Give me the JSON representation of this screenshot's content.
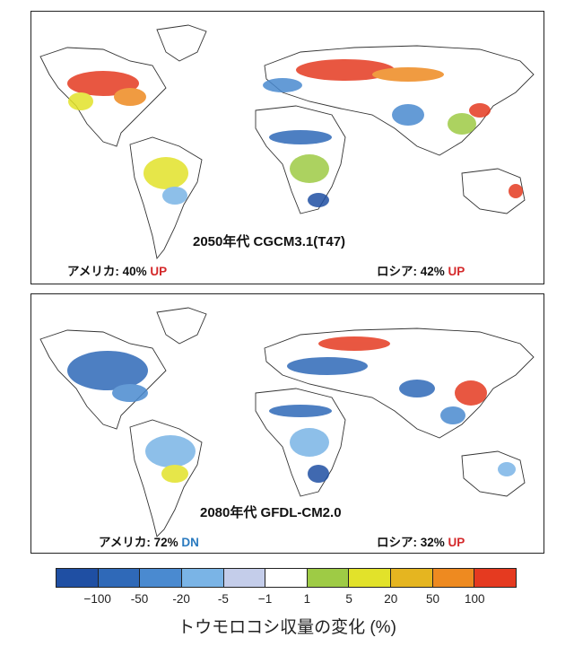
{
  "panels": [
    {
      "title": "2050年代  CGCM3.1(T47)",
      "usa": {
        "label": "アメリカ: 40% ",
        "change": "UP",
        "percent": 40
      },
      "russia": {
        "label": "ロシア: 42% ",
        "change": "UP",
        "percent": 42
      }
    },
    {
      "title": "2080年代  GFDL-CM2.0",
      "usa": {
        "label": "アメリカ: 72% ",
        "change": "DN",
        "percent": 72
      },
      "russia": {
        "label": "ロシア: 32% ",
        "change": "UP",
        "percent": 32
      }
    }
  ],
  "legend": {
    "caption": "トウモロコシ収量の変化 (%)",
    "colors": [
      "#1f4fa3",
      "#2f69b8",
      "#4a8ad0",
      "#7ab4e6",
      "#c4cdea",
      "#ffffff",
      "#9ecb45",
      "#e2e22a",
      "#e5b520",
      "#ee8a20",
      "#e53a20"
    ],
    "ticks": [
      "−100",
      "-50",
      "-20",
      "-5",
      "−1",
      "1",
      "5",
      "20",
      "50",
      "100"
    ]
  },
  "colors": {
    "up": "#d4282a",
    "dn": "#2a7abf"
  }
}
